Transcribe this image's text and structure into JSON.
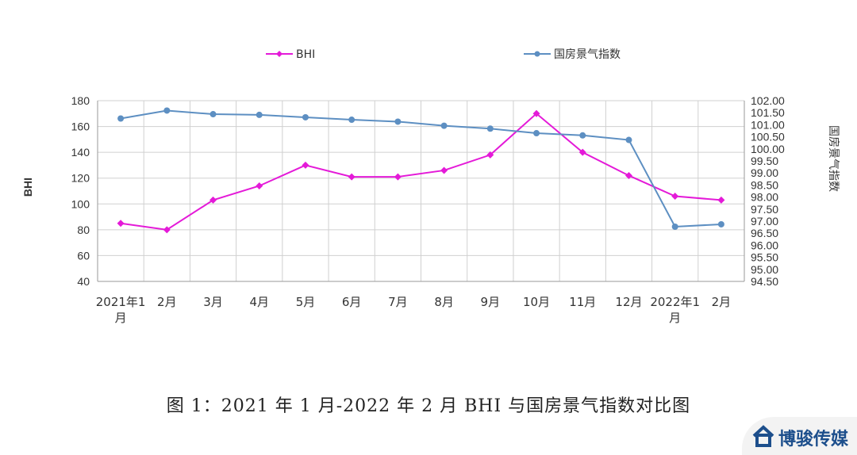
{
  "caption": "图 1：2021 年 1 月-2022 年 2 月 BHI 与国房景气指数对比图",
  "watermark": "博骏传媒",
  "chart_data": {
    "type": "line",
    "categories": [
      "2021年1月",
      "2月",
      "3月",
      "4月",
      "5月",
      "6月",
      "7月",
      "8月",
      "9月",
      "10月",
      "11月",
      "12月",
      "2022年1月",
      "2月"
    ],
    "series": [
      {
        "name": "BHI",
        "axis": "left",
        "color": "#e41ad8",
        "marker": "diamond",
        "values": [
          85,
          80,
          103,
          114,
          130,
          121,
          121,
          126,
          138,
          170,
          140,
          122,
          106,
          103
        ]
      },
      {
        "name": "国房景气指数",
        "axis": "right",
        "color": "#5d8fc2",
        "marker": "circle",
        "values": [
          101.26,
          101.59,
          101.44,
          101.41,
          101.31,
          101.21,
          101.13,
          100.96,
          100.84,
          100.65,
          100.56,
          100.37,
          96.77,
          96.87
        ]
      }
    ],
    "y_left": {
      "label": "BHI",
      "min": 40,
      "max": 180,
      "ticks": [
        "40",
        "60",
        "80",
        "100",
        "120",
        "140",
        "160",
        "180"
      ]
    },
    "y_right": {
      "label": "国房景气指数",
      "min": 94.5,
      "max": 102,
      "ticks": [
        "94.50",
        "95.00",
        "95.50",
        "96.00",
        "96.50",
        "97.00",
        "97.50",
        "98.00",
        "98.50",
        "99.00",
        "99.50",
        "100.00",
        "100.50",
        "101.00",
        "101.50",
        "102.00"
      ]
    },
    "grid": true,
    "legend": "top"
  }
}
